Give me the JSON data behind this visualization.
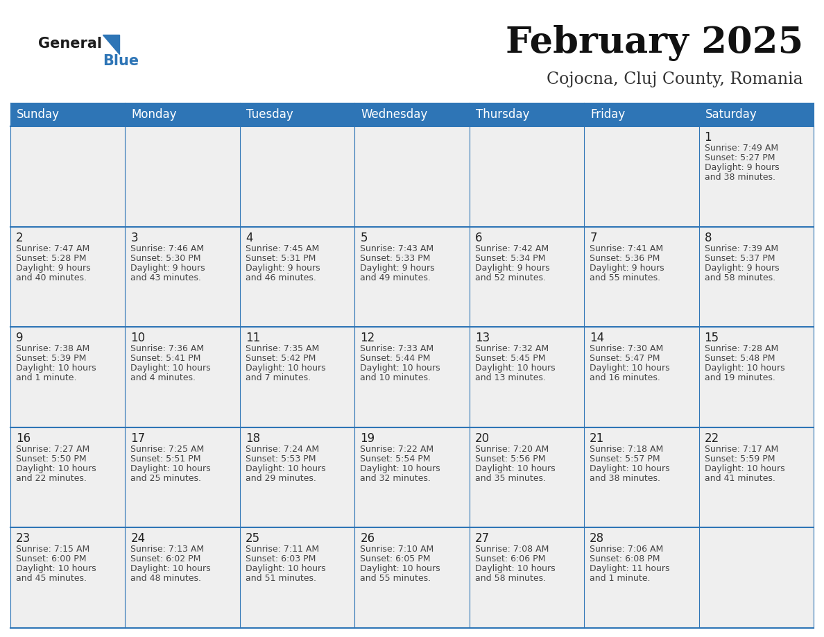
{
  "title": "February 2025",
  "subtitle": "Cojocna, Cluj County, Romania",
  "header_bg": "#2E75B6",
  "header_text_color": "#FFFFFF",
  "cell_bg": "#EFEFEF",
  "border_color": "#2E75B6",
  "text_color": "#333333",
  "day_number_color": "#222222",
  "info_text_color": "#444444",
  "day_headers": [
    "Sunday",
    "Monday",
    "Tuesday",
    "Wednesday",
    "Thursday",
    "Friday",
    "Saturday"
  ],
  "logo_general_color": "#1A1A1A",
  "logo_blue_color": "#2E75B6",
  "title_fontsize": 38,
  "subtitle_fontsize": 17,
  "header_fontsize": 12,
  "day_num_fontsize": 12,
  "info_fontsize": 9,
  "days": [
    {
      "day": 1,
      "col": 6,
      "row": 0,
      "sunrise": "7:49 AM",
      "sunset": "5:27 PM",
      "daylight": "9 hours and 38 minutes."
    },
    {
      "day": 2,
      "col": 0,
      "row": 1,
      "sunrise": "7:47 AM",
      "sunset": "5:28 PM",
      "daylight": "9 hours and 40 minutes."
    },
    {
      "day": 3,
      "col": 1,
      "row": 1,
      "sunrise": "7:46 AM",
      "sunset": "5:30 PM",
      "daylight": "9 hours and 43 minutes."
    },
    {
      "day": 4,
      "col": 2,
      "row": 1,
      "sunrise": "7:45 AM",
      "sunset": "5:31 PM",
      "daylight": "9 hours and 46 minutes."
    },
    {
      "day": 5,
      "col": 3,
      "row": 1,
      "sunrise": "7:43 AM",
      "sunset": "5:33 PM",
      "daylight": "9 hours and 49 minutes."
    },
    {
      "day": 6,
      "col": 4,
      "row": 1,
      "sunrise": "7:42 AM",
      "sunset": "5:34 PM",
      "daylight": "9 hours and 52 minutes."
    },
    {
      "day": 7,
      "col": 5,
      "row": 1,
      "sunrise": "7:41 AM",
      "sunset": "5:36 PM",
      "daylight": "9 hours and 55 minutes."
    },
    {
      "day": 8,
      "col": 6,
      "row": 1,
      "sunrise": "7:39 AM",
      "sunset": "5:37 PM",
      "daylight": "9 hours and 58 minutes."
    },
    {
      "day": 9,
      "col": 0,
      "row": 2,
      "sunrise": "7:38 AM",
      "sunset": "5:39 PM",
      "daylight": "10 hours and 1 minute."
    },
    {
      "day": 10,
      "col": 1,
      "row": 2,
      "sunrise": "7:36 AM",
      "sunset": "5:41 PM",
      "daylight": "10 hours and 4 minutes."
    },
    {
      "day": 11,
      "col": 2,
      "row": 2,
      "sunrise": "7:35 AM",
      "sunset": "5:42 PM",
      "daylight": "10 hours and 7 minutes."
    },
    {
      "day": 12,
      "col": 3,
      "row": 2,
      "sunrise": "7:33 AM",
      "sunset": "5:44 PM",
      "daylight": "10 hours and 10 minutes."
    },
    {
      "day": 13,
      "col": 4,
      "row": 2,
      "sunrise": "7:32 AM",
      "sunset": "5:45 PM",
      "daylight": "10 hours and 13 minutes."
    },
    {
      "day": 14,
      "col": 5,
      "row": 2,
      "sunrise": "7:30 AM",
      "sunset": "5:47 PM",
      "daylight": "10 hours and 16 minutes."
    },
    {
      "day": 15,
      "col": 6,
      "row": 2,
      "sunrise": "7:28 AM",
      "sunset": "5:48 PM",
      "daylight": "10 hours and 19 minutes."
    },
    {
      "day": 16,
      "col": 0,
      "row": 3,
      "sunrise": "7:27 AM",
      "sunset": "5:50 PM",
      "daylight": "10 hours and 22 minutes."
    },
    {
      "day": 17,
      "col": 1,
      "row": 3,
      "sunrise": "7:25 AM",
      "sunset": "5:51 PM",
      "daylight": "10 hours and 25 minutes."
    },
    {
      "day": 18,
      "col": 2,
      "row": 3,
      "sunrise": "7:24 AM",
      "sunset": "5:53 PM",
      "daylight": "10 hours and 29 minutes."
    },
    {
      "day": 19,
      "col": 3,
      "row": 3,
      "sunrise": "7:22 AM",
      "sunset": "5:54 PM",
      "daylight": "10 hours and 32 minutes."
    },
    {
      "day": 20,
      "col": 4,
      "row": 3,
      "sunrise": "7:20 AM",
      "sunset": "5:56 PM",
      "daylight": "10 hours and 35 minutes."
    },
    {
      "day": 21,
      "col": 5,
      "row": 3,
      "sunrise": "7:18 AM",
      "sunset": "5:57 PM",
      "daylight": "10 hours and 38 minutes."
    },
    {
      "day": 22,
      "col": 6,
      "row": 3,
      "sunrise": "7:17 AM",
      "sunset": "5:59 PM",
      "daylight": "10 hours and 41 minutes."
    },
    {
      "day": 23,
      "col": 0,
      "row": 4,
      "sunrise": "7:15 AM",
      "sunset": "6:00 PM",
      "daylight": "10 hours and 45 minutes."
    },
    {
      "day": 24,
      "col": 1,
      "row": 4,
      "sunrise": "7:13 AM",
      "sunset": "6:02 PM",
      "daylight": "10 hours and 48 minutes."
    },
    {
      "day": 25,
      "col": 2,
      "row": 4,
      "sunrise": "7:11 AM",
      "sunset": "6:03 PM",
      "daylight": "10 hours and 51 minutes."
    },
    {
      "day": 26,
      "col": 3,
      "row": 4,
      "sunrise": "7:10 AM",
      "sunset": "6:05 PM",
      "daylight": "10 hours and 55 minutes."
    },
    {
      "day": 27,
      "col": 4,
      "row": 4,
      "sunrise": "7:08 AM",
      "sunset": "6:06 PM",
      "daylight": "10 hours and 58 minutes."
    },
    {
      "day": 28,
      "col": 5,
      "row": 4,
      "sunrise": "7:06 AM",
      "sunset": "6:08 PM",
      "daylight": "11 hours and 1 minute."
    }
  ]
}
